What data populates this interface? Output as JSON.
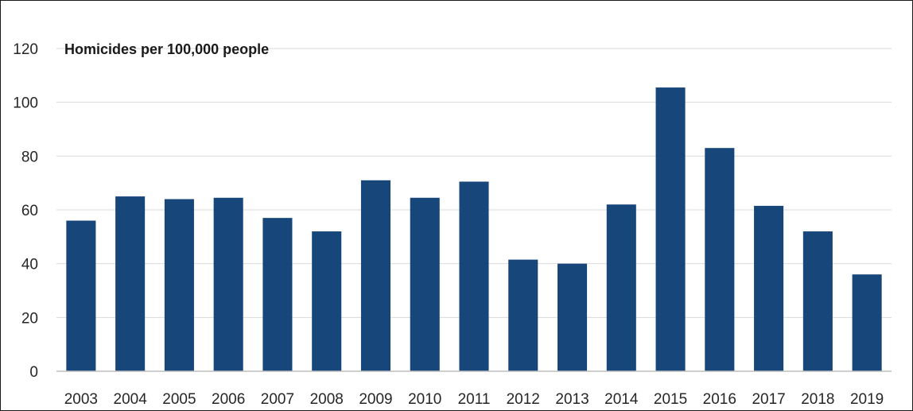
{
  "chart_data": {
    "type": "bar",
    "title": "Homicides per 100,000 people",
    "xlabel": "",
    "ylabel": "",
    "categories": [
      "2003",
      "2004",
      "2005",
      "2006",
      "2007",
      "2008",
      "2009",
      "2010",
      "2011",
      "2012",
      "2013",
      "2014",
      "2015",
      "2016",
      "2017",
      "2018",
      "2019"
    ],
    "values": [
      56,
      65,
      64,
      64.5,
      57,
      52,
      71,
      64.5,
      70.5,
      41.5,
      40,
      62,
      105.5,
      83,
      61.5,
      52,
      36
    ],
    "ylim": [
      0,
      120
    ],
    "yticks": [
      "0",
      "20",
      "40",
      "60",
      "80",
      "100",
      "120"
    ],
    "grid": true,
    "legend": "none",
    "colors": {
      "bar": "#17467b",
      "grid": "#d9d9d9",
      "axis": "#bfbfbf"
    }
  }
}
